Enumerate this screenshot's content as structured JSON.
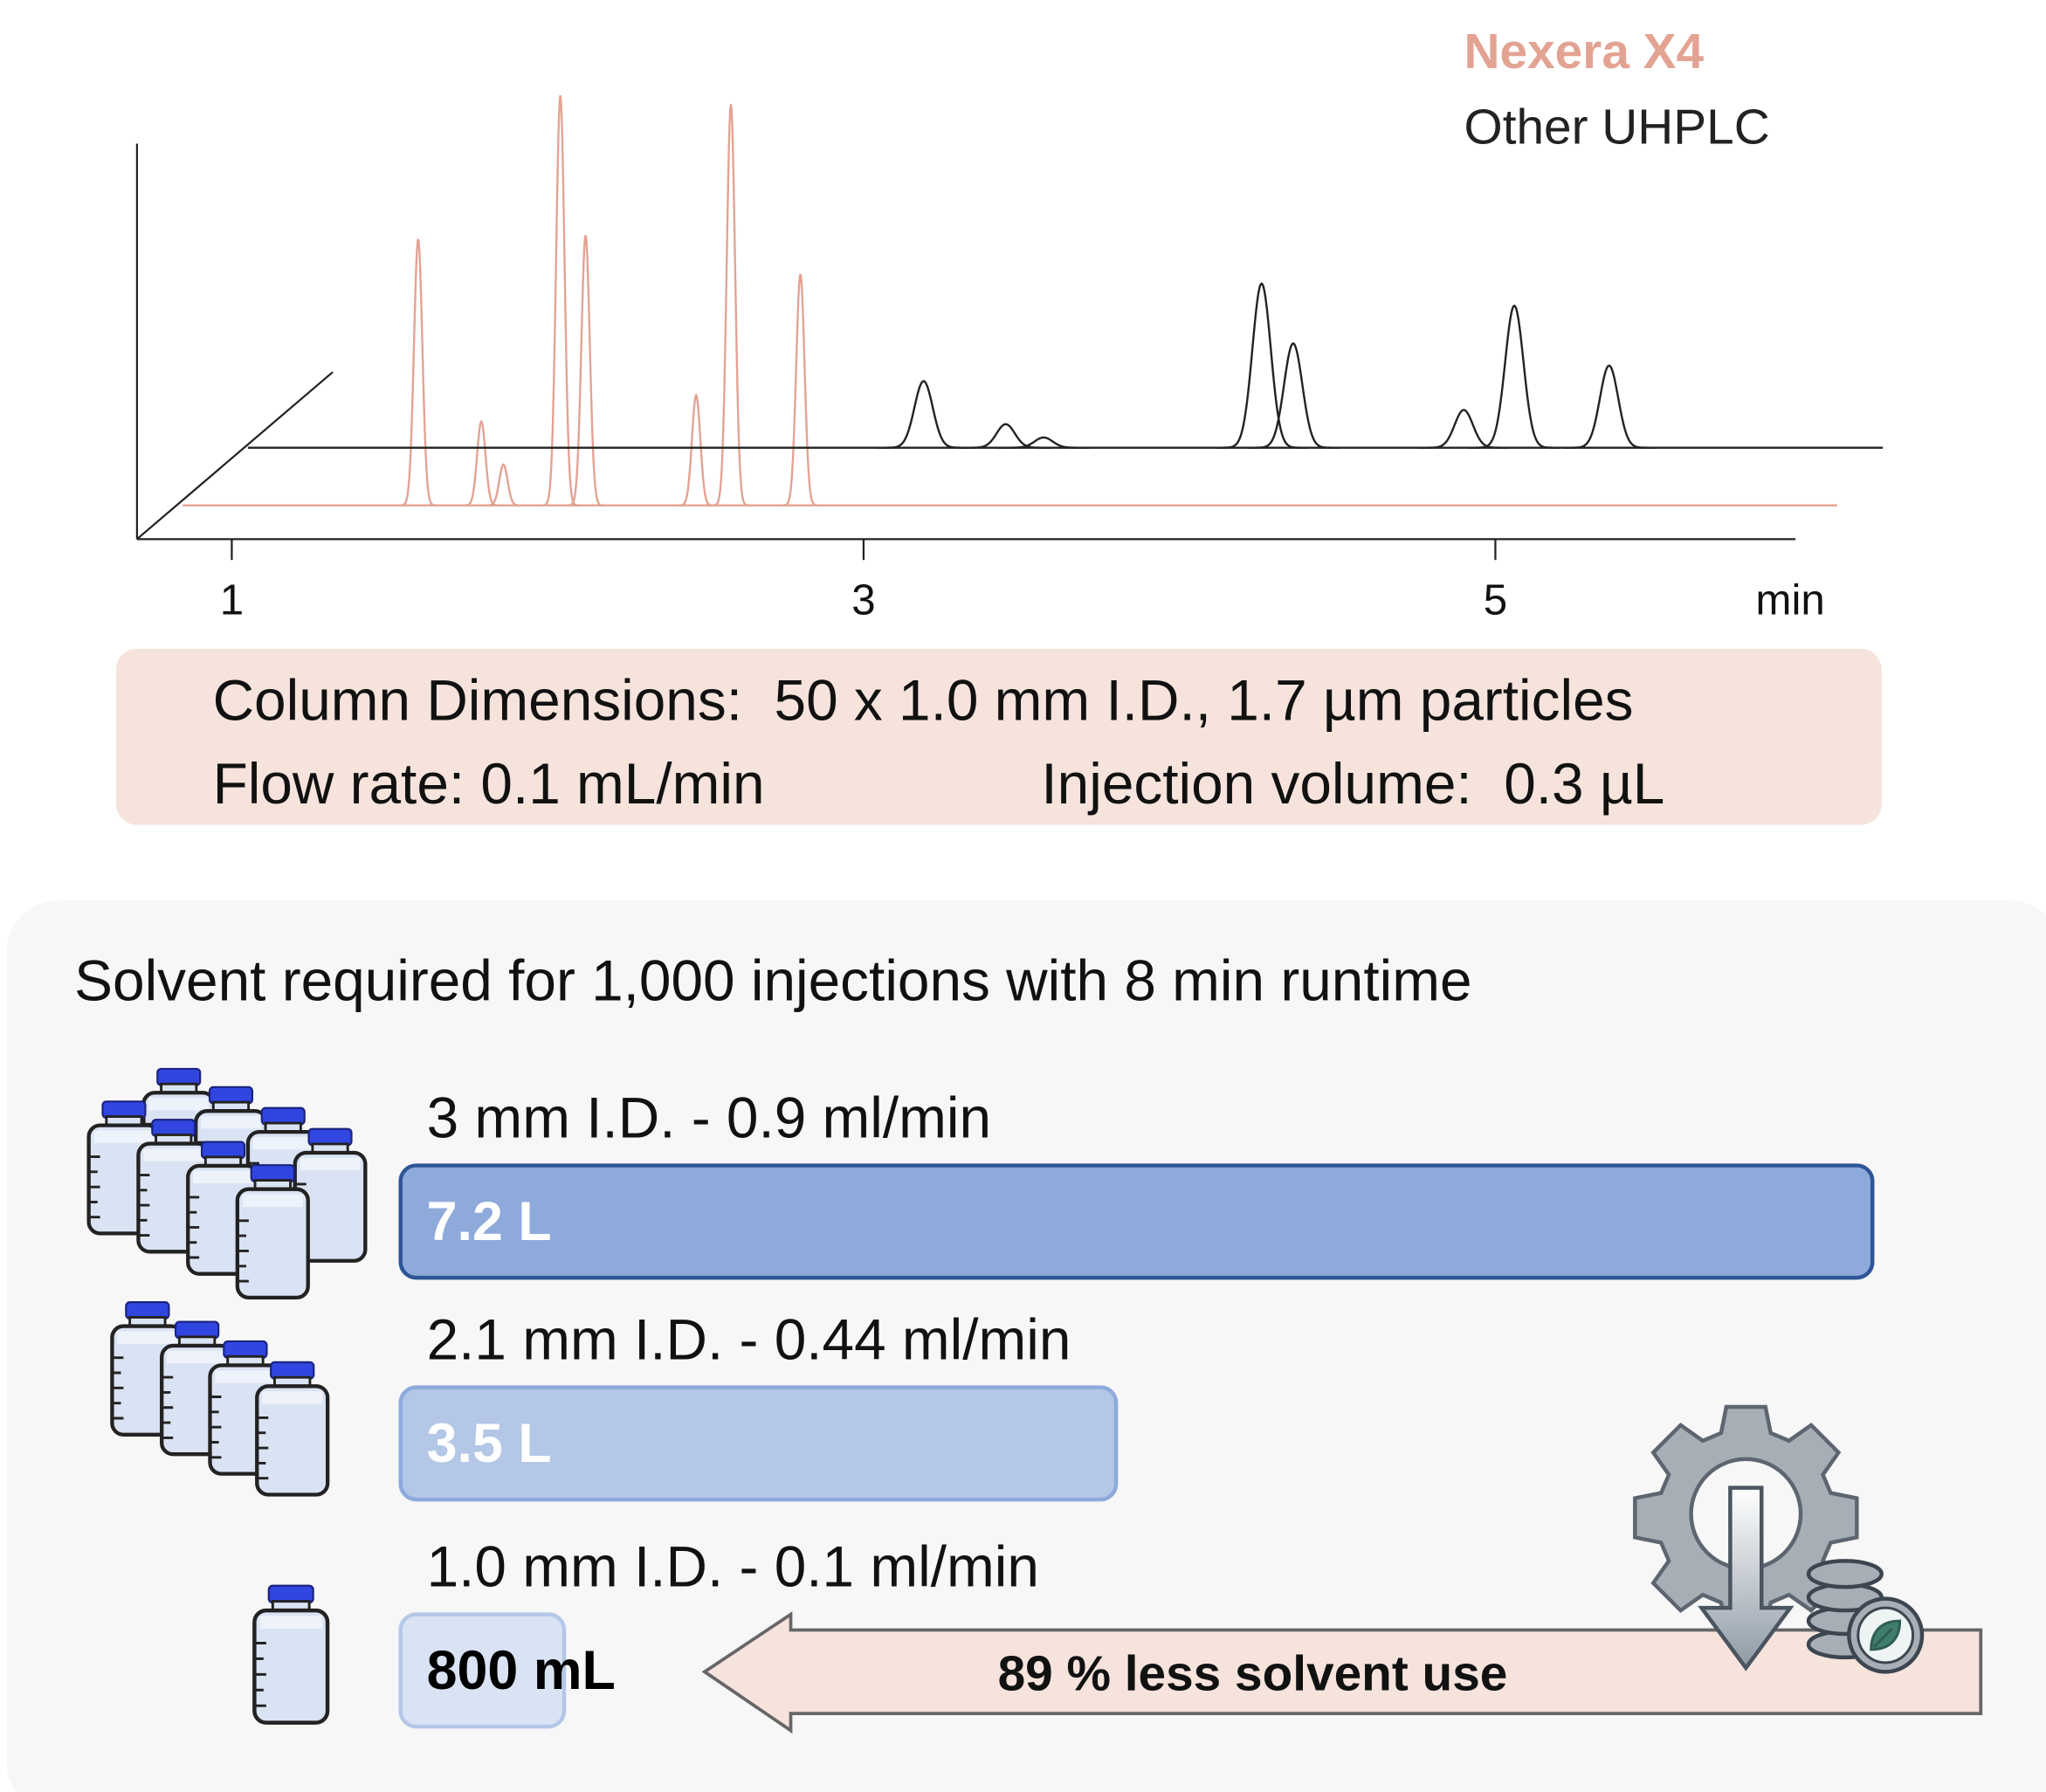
{
  "chart_data": [
    {
      "type": "chromatogram",
      "xlim": [
        0.7,
        5.95
      ],
      "xticks": [
        1,
        3,
        5
      ],
      "xlabel": "min",
      "ylim": [
        0,
        100
      ],
      "series": [
        {
          "name": "Nexera X4",
          "color": "#e3a393",
          "baseline": 7.6,
          "x": [
            1.59,
            1.79,
            1.86,
            2.04,
            2.12,
            2.47,
            2.58,
            2.8
          ],
          "values": [
            67.6,
            26.5,
            16.8,
            100,
            68.5,
            32.4,
            98,
            59.7
          ]
        },
        {
          "name": "Other UHPLC",
          "color": "#222222",
          "baseline": 20.6,
          "x": [
            3.19,
            3.45,
            3.57,
            4.26,
            4.36,
            4.9,
            5.06,
            5.36
          ],
          "values": [
            35.6,
            25.9,
            22.9,
            57.6,
            44.1,
            29.1,
            52.6,
            39.1
          ]
        }
      ]
    },
    {
      "type": "bar",
      "title": "Solvent required for 1,000 injections with 8 min runtime",
      "categories": [
        "3 mm I.D. - 0.9 ml/min",
        "2.1 mm I.D. - 0.44 ml/min",
        "1.0 mm I.D. - 0.1 ml/min"
      ],
      "values": [
        7.2,
        3.5,
        0.8
      ],
      "value_labels": [
        "7.2 L",
        "3.5 L",
        "800 mL"
      ],
      "colors": [
        "#8eaadb",
        "#b4c7e7",
        "#dae3f3"
      ],
      "edge_colors": [
        "#2f5597",
        "#8eaadb",
        "#b4c7e7"
      ],
      "label_colors": [
        "#ffffff",
        "#ffffff",
        "#000000"
      ],
      "xlim": [
        0,
        7.2
      ],
      "annotation": "89 % less solvent use"
    }
  ],
  "info": {
    "column": "Column Dimensions:  50 x 1.0 mm I.D., 1.7 µm particles",
    "flow_rate": "Flow rate: 0.1 mL/min",
    "injection_volume": "Injection volume:  0.3 µL"
  }
}
